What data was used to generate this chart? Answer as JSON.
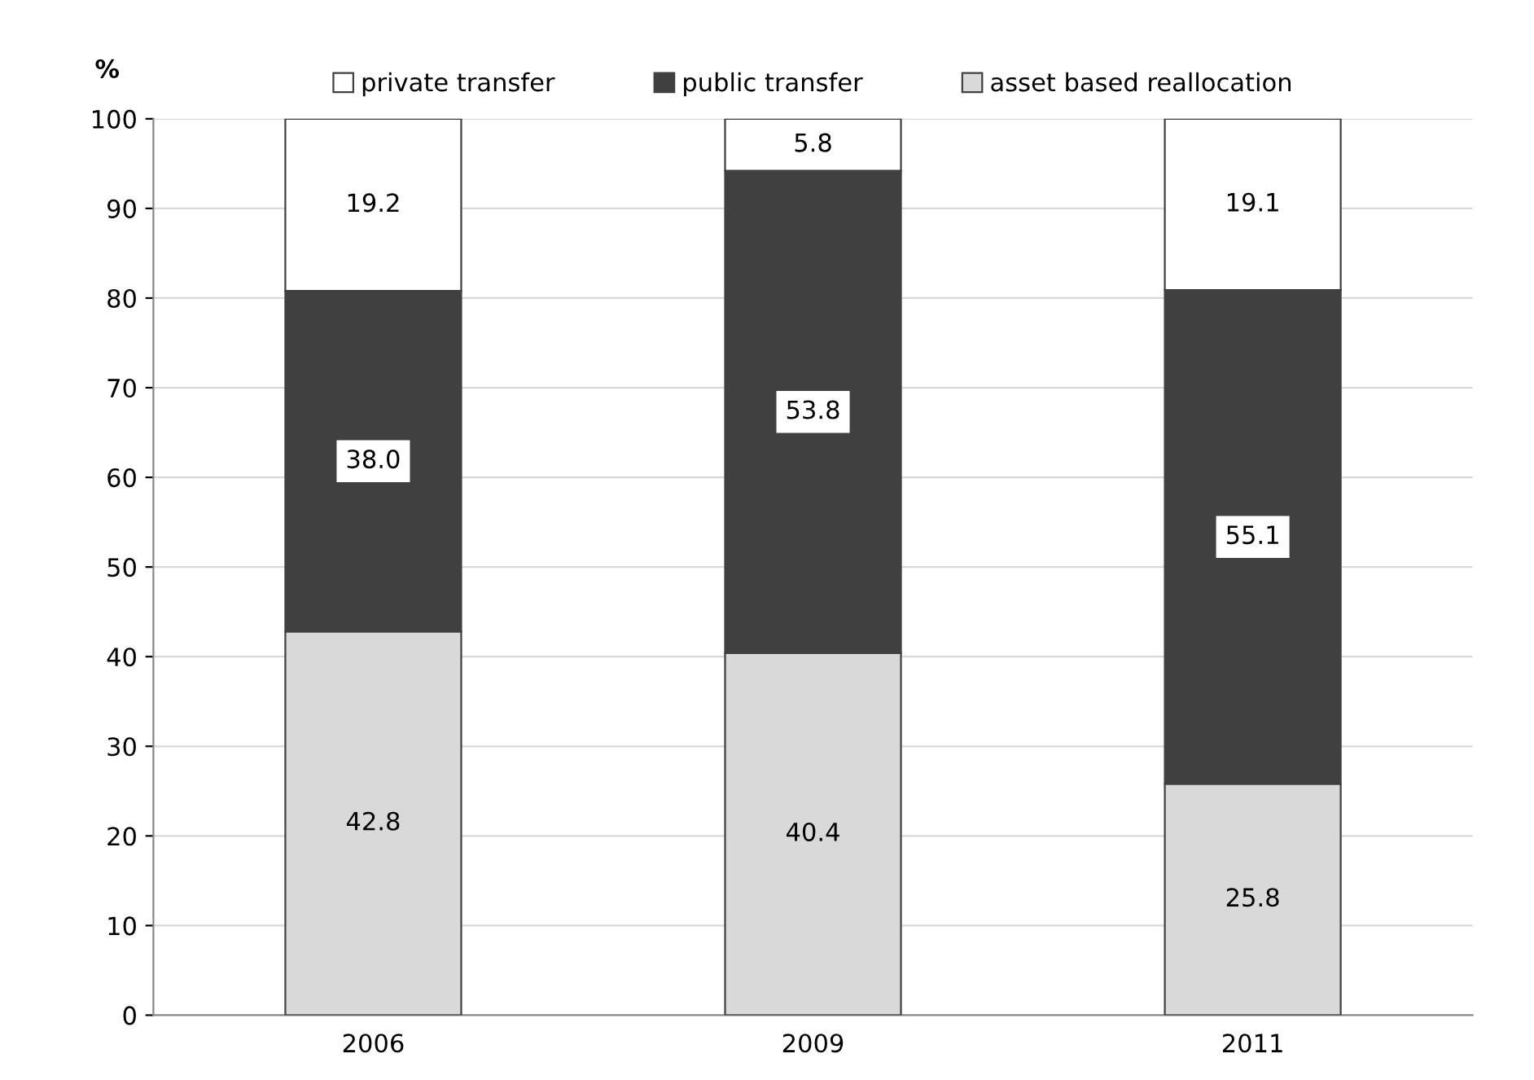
{
  "chart_data": {
    "type": "bar",
    "stacked": true,
    "ylabel": "%",
    "categories": [
      "2006",
      "2009",
      "2011"
    ],
    "series": [
      {
        "name": "asset based reallocation",
        "color": "#d9d9d9",
        "values": [
          42.8,
          40.4,
          25.8
        ],
        "value_labels": [
          "42.8",
          "40.4",
          "25.8"
        ]
      },
      {
        "name": "public transfer",
        "color": "#404040",
        "values": [
          38.0,
          53.8,
          55.1
        ],
        "value_labels": [
          "38.0",
          "53.8",
          "55.1"
        ]
      },
      {
        "name": "private transfer",
        "color": "#ffffff",
        "values": [
          19.2,
          5.8,
          19.1
        ],
        "value_labels": [
          "19.2",
          "5.8",
          "19.1"
        ]
      }
    ],
    "ylim": [
      0,
      100
    ],
    "yticks": [
      0,
      10,
      20,
      30,
      40,
      50,
      60,
      70,
      80,
      90,
      100
    ],
    "grid": "y",
    "legend": "top"
  }
}
